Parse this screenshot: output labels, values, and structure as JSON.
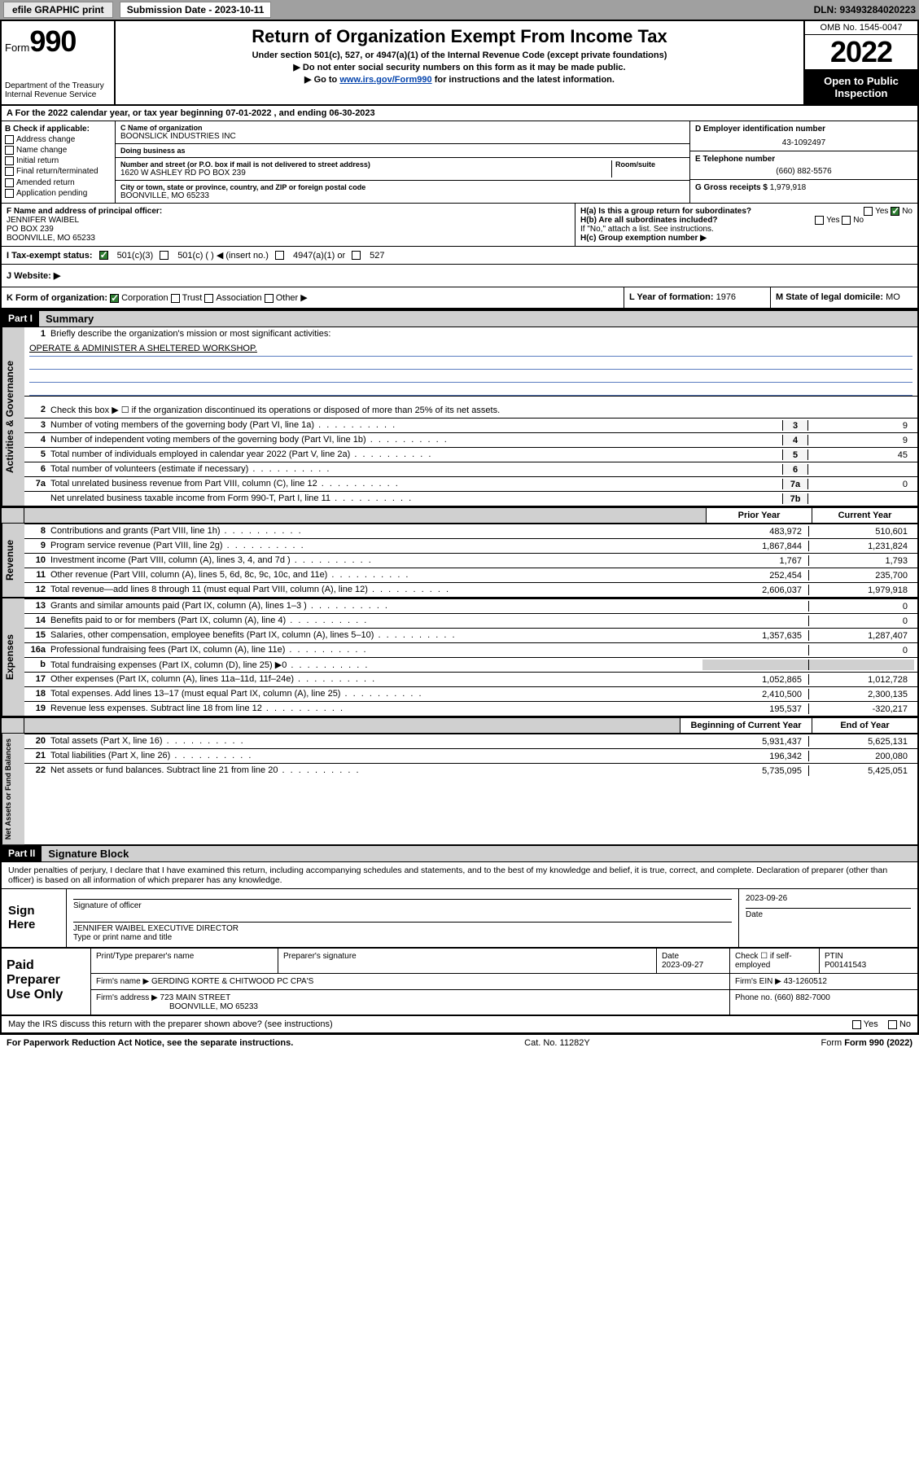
{
  "topbar": {
    "efile": "efile GRAPHIC print",
    "sub_label": "Submission Date - 2023-10-11",
    "dln": "DLN: 93493284020223"
  },
  "header": {
    "form_prefix": "Form",
    "form_no": "990",
    "dept": "Department of the Treasury",
    "irs": "Internal Revenue Service",
    "title": "Return of Organization Exempt From Income Tax",
    "sub1": "Under section 501(c), 527, or 4947(a)(1) of the Internal Revenue Code (except private foundations)",
    "sub2": "▶ Do not enter social security numbers on this form as it may be made public.",
    "sub3_pre": "▶ Go to ",
    "sub3_link": "www.irs.gov/Form990",
    "sub3_post": " for instructions and the latest information.",
    "omb": "OMB No. 1545-0047",
    "year": "2022",
    "open": "Open to Public Inspection"
  },
  "period": {
    "text_a": "For the 2022 calendar year, or tax year beginning ",
    "begin": "07-01-2022",
    "text_b": " , and ending ",
    "end": "06-30-2023"
  },
  "boxB": {
    "label": "B Check if applicable:",
    "opts": [
      "Address change",
      "Name change",
      "Initial return",
      "Final return/terminated",
      "Amended return",
      "Application pending"
    ]
  },
  "boxC": {
    "name_lbl": "C Name of organization",
    "name": "BOONSLICK INDUSTRIES INC",
    "dba_lbl": "Doing business as",
    "dba": "",
    "addr_lbl": "Number and street (or P.O. box if mail is not delivered to street address)",
    "room_lbl": "Room/suite",
    "addr": "1620 W ASHLEY RD PO BOX 239",
    "city_lbl": "City or town, state or province, country, and ZIP or foreign postal code",
    "city": "BOONVILLE, MO  65233"
  },
  "boxD": {
    "lbl": "D Employer identification number",
    "val": "43-1092497"
  },
  "boxE": {
    "lbl": "E Telephone number",
    "val": "(660) 882-5576"
  },
  "boxG": {
    "lbl": "G Gross receipts $",
    "val": "1,979,918"
  },
  "boxF": {
    "lbl": "F Name and address of principal officer:",
    "name": "JENNIFER WAIBEL",
    "po": "PO BOX 239",
    "city": "BOONVILLE, MO  65233"
  },
  "boxH": {
    "a": "H(a)  Is this a group return for subordinates?",
    "a_yes": "Yes",
    "a_no": "No",
    "b": "H(b)  Are all subordinates included?",
    "b_note": "If \"No,\" attach a list. See instructions.",
    "c": "H(c)  Group exemption number ▶"
  },
  "taxrow": {
    "lbl": "I   Tax-exempt status:",
    "o1": "501(c)(3)",
    "o2": "501(c) (   ) ◀ (insert no.)",
    "o3": "4947(a)(1) or",
    "o4": "527"
  },
  "webrow": {
    "lbl": "J   Website: ▶"
  },
  "krow": {
    "k": "K Form of organization:",
    "opts": [
      "Corporation",
      "Trust",
      "Association",
      "Other ▶"
    ],
    "l_lbl": "L Year of formation:",
    "l_val": "1976",
    "m_lbl": "M State of legal domicile:",
    "m_val": "MO"
  },
  "part1": {
    "hdr": "Part I",
    "title": "Summary"
  },
  "summary": {
    "l1_lbl": "Briefly describe the organization's mission or most significant activities:",
    "l1_val": "OPERATE & ADMINISTER A SHELTERED WORKSHOP.",
    "l2": "Check this box ▶ ☐  if the organization discontinued its operations or disposed of more than 25% of its net assets.",
    "rows_single": [
      {
        "n": "3",
        "t": "Number of voting members of the governing body (Part VI, line 1a)",
        "r": "3",
        "v": "9"
      },
      {
        "n": "4",
        "t": "Number of independent voting members of the governing body (Part VI, line 1b)",
        "r": "4",
        "v": "9"
      },
      {
        "n": "5",
        "t": "Total number of individuals employed in calendar year 2022 (Part V, line 2a)",
        "r": "5",
        "v": "45"
      },
      {
        "n": "6",
        "t": "Total number of volunteers (estimate if necessary)",
        "r": "6",
        "v": ""
      },
      {
        "n": "7a",
        "t": "Total unrelated business revenue from Part VIII, column (C), line 12",
        "r": "7a",
        "v": "0"
      },
      {
        "n": "",
        "t": "Net unrelated business taxable income from Form 990-T, Part I, line 11",
        "r": "7b",
        "v": ""
      }
    ],
    "col_prior": "Prior Year",
    "col_curr": "Current Year",
    "revenue": [
      {
        "n": "8",
        "t": "Contributions and grants (Part VIII, line 1h)",
        "p": "483,972",
        "c": "510,601"
      },
      {
        "n": "9",
        "t": "Program service revenue (Part VIII, line 2g)",
        "p": "1,867,844",
        "c": "1,231,824"
      },
      {
        "n": "10",
        "t": "Investment income (Part VIII, column (A), lines 3, 4, and 7d )",
        "p": "1,767",
        "c": "1,793"
      },
      {
        "n": "11",
        "t": "Other revenue (Part VIII, column (A), lines 5, 6d, 8c, 9c, 10c, and 11e)",
        "p": "252,454",
        "c": "235,700"
      },
      {
        "n": "12",
        "t": "Total revenue—add lines 8 through 11 (must equal Part VIII, column (A), line 12)",
        "p": "2,606,037",
        "c": "1,979,918"
      }
    ],
    "expenses": [
      {
        "n": "13",
        "t": "Grants and similar amounts paid (Part IX, column (A), lines 1–3 )",
        "p": "",
        "c": "0"
      },
      {
        "n": "14",
        "t": "Benefits paid to or for members (Part IX, column (A), line 4)",
        "p": "",
        "c": "0"
      },
      {
        "n": "15",
        "t": "Salaries, other compensation, employee benefits (Part IX, column (A), lines 5–10)",
        "p": "1,357,635",
        "c": "1,287,407"
      },
      {
        "n": "16a",
        "t": "Professional fundraising fees (Part IX, column (A), line 11e)",
        "p": "",
        "c": "0"
      },
      {
        "n": "b",
        "t": "Total fundraising expenses (Part IX, column (D), line 25) ▶0",
        "p": "GRAY",
        "c": "GRAY"
      },
      {
        "n": "17",
        "t": "Other expenses (Part IX, column (A), lines 11a–11d, 11f–24e)",
        "p": "1,052,865",
        "c": "1,012,728"
      },
      {
        "n": "18",
        "t": "Total expenses. Add lines 13–17 (must equal Part IX, column (A), line 25)",
        "p": "2,410,500",
        "c": "2,300,135"
      },
      {
        "n": "19",
        "t": "Revenue less expenses. Subtract line 18 from line 12",
        "p": "195,537",
        "c": "-320,217"
      }
    ],
    "col_begin": "Beginning of Current Year",
    "col_end": "End of Year",
    "netassets": [
      {
        "n": "20",
        "t": "Total assets (Part X, line 16)",
        "p": "5,931,437",
        "c": "5,625,131"
      },
      {
        "n": "21",
        "t": "Total liabilities (Part X, line 26)",
        "p": "196,342",
        "c": "200,080"
      },
      {
        "n": "22",
        "t": "Net assets or fund balances. Subtract line 21 from line 20",
        "p": "5,735,095",
        "c": "5,425,051"
      }
    ]
  },
  "vtabs": {
    "gov": "Activities & Governance",
    "rev": "Revenue",
    "exp": "Expenses",
    "net": "Net Assets or Fund Balances"
  },
  "part2": {
    "hdr": "Part II",
    "title": "Signature Block"
  },
  "sig": {
    "decl": "Under penalties of perjury, I declare that I have examined this return, including accompanying schedules and statements, and to the best of my knowledge and belief, it is true, correct, and complete. Declaration of preparer (other than officer) is based on all information of which preparer has any knowledge.",
    "sign_here": "Sign Here",
    "sig_officer": "Signature of officer",
    "date_lbl": "Date",
    "date_val": "2023-09-26",
    "name_title": "JENNIFER WAIBEL  EXECUTIVE DIRECTOR",
    "name_lbl": "Type or print name and title"
  },
  "prep": {
    "hdr": "Paid Preparer Use Only",
    "c1": "Print/Type preparer's name",
    "c2": "Preparer's signature",
    "c3": "Date",
    "c3v": "2023-09-27",
    "c4": "Check ☐ if self-employed",
    "c5": "PTIN",
    "c5v": "P00141543",
    "firm_lbl": "Firm's name    ▶",
    "firm": "GERDING KORTE & CHITWOOD PC CPA'S",
    "ein_lbl": "Firm's EIN ▶",
    "ein": "43-1260512",
    "addr_lbl": "Firm's address ▶",
    "addr1": "723 MAIN STREET",
    "addr2": "BOONVILLE, MO  65233",
    "phone_lbl": "Phone no.",
    "phone": "(660) 882-7000",
    "discuss": "May the IRS discuss this return with the preparer shown above? (see instructions)",
    "yes": "Yes",
    "no": "No"
  },
  "footer": {
    "pra": "For Paperwork Reduction Act Notice, see the separate instructions.",
    "cat": "Cat. No. 11282Y",
    "form": "Form 990 (2022)"
  }
}
